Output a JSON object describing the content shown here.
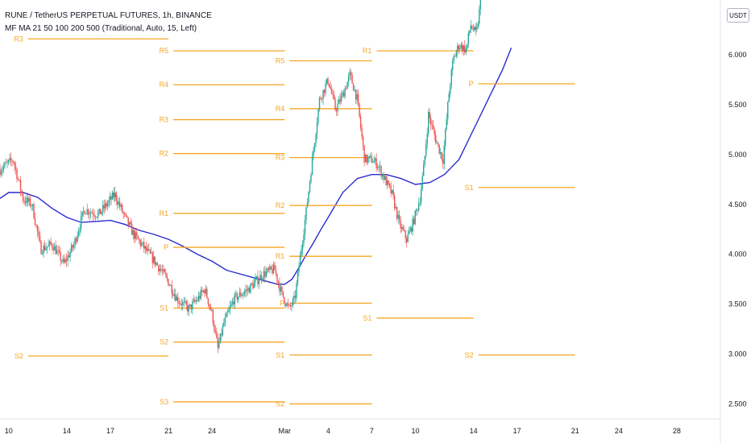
{
  "header": {
    "title": "RUNE / TetherUS PERPETUAL FUTURES, 1h, BINANCE",
    "indicator": "MF MA 21 50 100 200 500 (Traditional, Auto, 15, Left)"
  },
  "currency_badge": "USDT",
  "colors": {
    "pivot": "#f5a623",
    "ma": "#2a2ad0",
    "up": "#26a69a",
    "down": "#ef5350",
    "axis_text": "#131722"
  },
  "chart_data": {
    "type": "candlestick",
    "x_axis": {
      "ticks": [
        {
          "label": "10",
          "day": 10
        },
        {
          "label": "14",
          "day": 14
        },
        {
          "label": "17",
          "day": 17
        },
        {
          "label": "21",
          "day": 21
        },
        {
          "label": "24",
          "day": 24
        },
        {
          "label": "Mar",
          "day": 29
        },
        {
          "label": "4",
          "day": 32
        },
        {
          "label": "7",
          "day": 35
        },
        {
          "label": "10",
          "day": 38
        },
        {
          "label": "14",
          "day": 42
        },
        {
          "label": "17",
          "day": 45
        },
        {
          "label": "21",
          "day": 49
        },
        {
          "label": "24",
          "day": 52
        },
        {
          "label": "28",
          "day": 56
        }
      ]
    },
    "y_axis": {
      "ylim": [
        2.35,
        6.55
      ],
      "ticks": [
        "2.500",
        "3.000",
        "3.500",
        "4.000",
        "4.500",
        "5.000",
        "5.500",
        "6.000"
      ]
    },
    "price_path": [
      [
        9.4,
        4.85
      ],
      [
        10.3,
        4.95
      ],
      [
        11.0,
        4.55
      ],
      [
        11.6,
        4.5
      ],
      [
        12.2,
        4.05
      ],
      [
        13.0,
        4.1
      ],
      [
        13.8,
        3.9
      ],
      [
        14.5,
        4.1
      ],
      [
        15.2,
        4.45
      ],
      [
        16.2,
        4.4
      ],
      [
        17.3,
        4.6
      ],
      [
        17.9,
        4.4
      ],
      [
        18.6,
        4.2
      ],
      [
        19.4,
        4.05
      ],
      [
        20.2,
        3.9
      ],
      [
        20.9,
        3.75
      ],
      [
        21.6,
        3.55
      ],
      [
        22.4,
        3.45
      ],
      [
        23.0,
        3.55
      ],
      [
        23.5,
        3.65
      ],
      [
        24.0,
        3.4
      ],
      [
        24.4,
        3.05
      ],
      [
        24.8,
        3.3
      ],
      [
        25.5,
        3.55
      ],
      [
        26.5,
        3.65
      ],
      [
        27.5,
        3.8
      ],
      [
        28.3,
        3.85
      ],
      [
        28.8,
        3.6
      ],
      [
        29.3,
        3.45
      ],
      [
        29.7,
        3.55
      ],
      [
        30.0,
        3.9
      ],
      [
        30.5,
        4.45
      ],
      [
        30.9,
        4.95
      ],
      [
        31.4,
        5.55
      ],
      [
        32.0,
        5.75
      ],
      [
        32.5,
        5.45
      ],
      [
        33.0,
        5.6
      ],
      [
        33.5,
        5.8
      ],
      [
        34.0,
        5.55
      ],
      [
        34.5,
        4.95
      ],
      [
        35.0,
        4.95
      ],
      [
        35.4,
        4.9
      ],
      [
        35.9,
        4.75
      ],
      [
        36.4,
        4.6
      ],
      [
        36.9,
        4.3
      ],
      [
        37.4,
        4.15
      ],
      [
        37.8,
        4.3
      ],
      [
        38.3,
        4.55
      ],
      [
        38.6,
        4.9
      ],
      [
        38.9,
        5.4
      ],
      [
        39.4,
        5.15
      ],
      [
        39.9,
        4.95
      ],
      [
        40.3,
        5.6
      ],
      [
        40.6,
        5.95
      ],
      [
        41.0,
        6.1
      ],
      [
        41.5,
        6.05
      ],
      [
        41.8,
        6.3
      ],
      [
        42.2,
        6.2
      ],
      [
        42.5,
        6.55
      ]
    ],
    "moving_average": {
      "points": [
        [
          9.4,
          4.56
        ],
        [
          10.0,
          4.62
        ],
        [
          11.0,
          4.62
        ],
        [
          12.0,
          4.57
        ],
        [
          13.0,
          4.46
        ],
        [
          14.0,
          4.37
        ],
        [
          15.0,
          4.32
        ],
        [
          16.0,
          4.33
        ],
        [
          17.0,
          4.34
        ],
        [
          18.0,
          4.3
        ],
        [
          19.0,
          4.24
        ],
        [
          20.0,
          4.2
        ],
        [
          21.0,
          4.15
        ],
        [
          22.0,
          4.08
        ],
        [
          23.0,
          4.0
        ],
        [
          24.0,
          3.93
        ],
        [
          25.0,
          3.84
        ],
        [
          26.0,
          3.8
        ],
        [
          27.0,
          3.76
        ],
        [
          28.0,
          3.72
        ],
        [
          28.5,
          3.7
        ],
        [
          29.0,
          3.7
        ],
        [
          29.5,
          3.75
        ],
        [
          30.0,
          3.87
        ],
        [
          30.5,
          4.0
        ],
        [
          31.0,
          4.12
        ],
        [
          31.5,
          4.25
        ],
        [
          32.0,
          4.37
        ],
        [
          33.0,
          4.62
        ],
        [
          34.0,
          4.76
        ],
        [
          35.0,
          4.8
        ],
        [
          36.0,
          4.8
        ],
        [
          37.0,
          4.76
        ],
        [
          38.0,
          4.7
        ],
        [
          39.0,
          4.72
        ],
        [
          40.0,
          4.8
        ],
        [
          41.0,
          4.95
        ],
        [
          42.0,
          5.25
        ],
        [
          43.0,
          5.55
        ],
        [
          44.0,
          5.85
        ],
        [
          44.6,
          6.07
        ]
      ]
    },
    "pivot_levels": [
      {
        "label": "R3",
        "x0": 11.0,
        "x1": 21.0,
        "y": 6.16
      },
      {
        "label": "S2",
        "x0": 11.0,
        "x1": 21.0,
        "y": 2.98
      },
      {
        "label": "R5",
        "x0": 21.0,
        "x1": 29.0,
        "y": 6.04
      },
      {
        "label": "R4",
        "x0": 21.0,
        "x1": 29.0,
        "y": 5.7
      },
      {
        "label": "R3",
        "x0": 21.0,
        "x1": 29.0,
        "y": 5.35
      },
      {
        "label": "R2",
        "x0": 21.0,
        "x1": 29.0,
        "y": 5.01
      },
      {
        "label": "R1",
        "x0": 21.0,
        "x1": 29.0,
        "y": 4.41
      },
      {
        "label": "P",
        "x0": 21.0,
        "x1": 29.0,
        "y": 4.07
      },
      {
        "label": "S1",
        "x0": 21.0,
        "x1": 29.0,
        "y": 3.46
      },
      {
        "label": "S2",
        "x0": 21.0,
        "x1": 29.0,
        "y": 3.12
      },
      {
        "label": "S3",
        "x0": 21.0,
        "x1": 29.0,
        "y": 2.52
      },
      {
        "label": "R5",
        "x0": 29.0,
        "x1": 35.0,
        "y": 5.94
      },
      {
        "label": "R4",
        "x0": 29.0,
        "x1": 35.0,
        "y": 5.46
      },
      {
        "label": "R3",
        "x0": 29.0,
        "x1": 35.0,
        "y": 4.97
      },
      {
        "label": "R2",
        "x0": 29.0,
        "x1": 35.0,
        "y": 4.49
      },
      {
        "label": "R1",
        "x0": 29.0,
        "x1": 35.0,
        "y": 3.98
      },
      {
        "label": "P",
        "x0": 29.0,
        "x1": 35.0,
        "y": 3.51
      },
      {
        "label": "S1",
        "x0": 29.0,
        "x1": 35.0,
        "y": 2.99
      },
      {
        "label": "S2",
        "x0": 29.0,
        "x1": 35.0,
        "y": 2.5
      },
      {
        "label": "R1",
        "x0": 35.0,
        "x1": 42.0,
        "y": 6.04
      },
      {
        "label": "S1",
        "x0": 35.0,
        "x1": 42.0,
        "y": 3.36
      },
      {
        "label": "P",
        "x0": 42.0,
        "x1": 49.0,
        "y": 5.71
      },
      {
        "label": "S1",
        "x0": 42.0,
        "x1": 49.0,
        "y": 4.67
      },
      {
        "label": "S2",
        "x0": 42.0,
        "x1": 49.0,
        "y": 2.99
      }
    ]
  }
}
